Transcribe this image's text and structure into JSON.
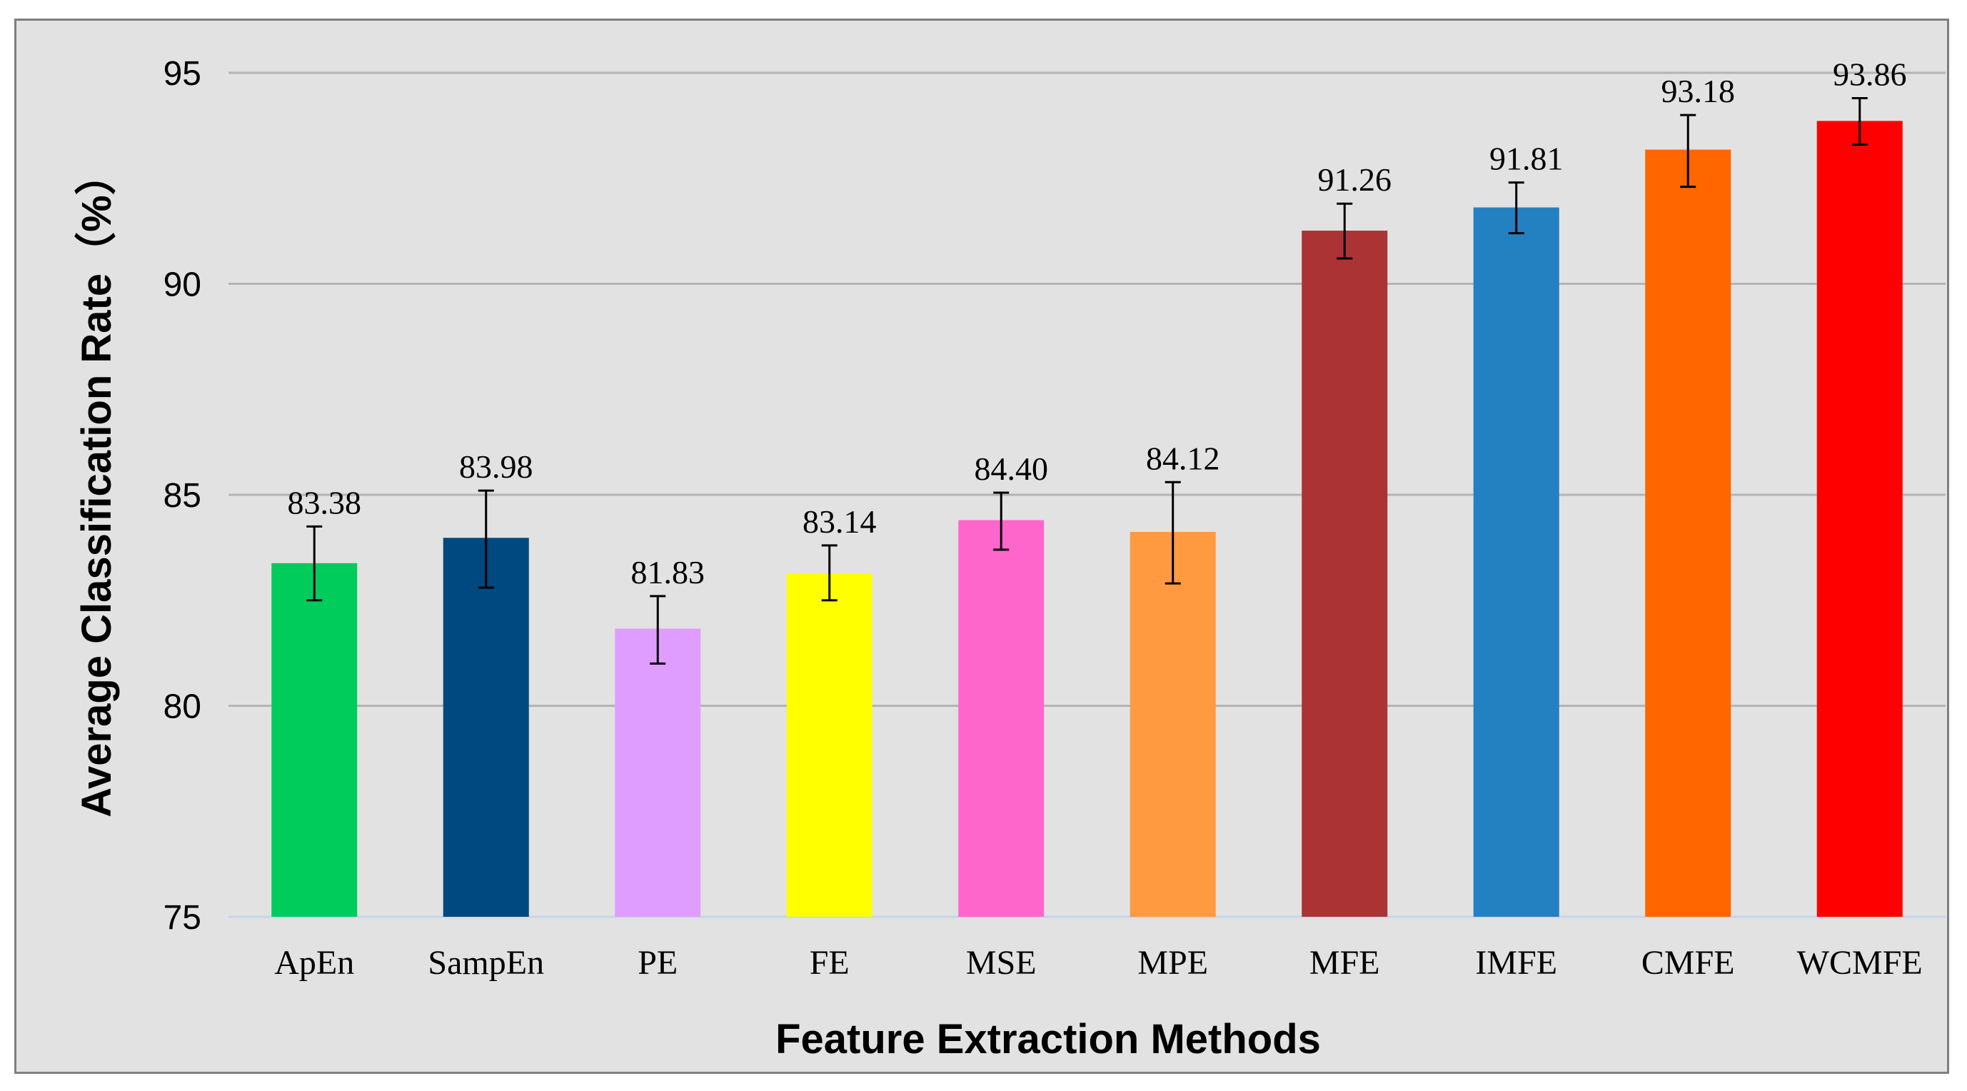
{
  "chart_data": {
    "type": "bar",
    "title": "",
    "xlabel": "Feature Extraction Methods",
    "ylabel": "Average Classification Rate（%）",
    "ylim": [
      75,
      95
    ],
    "yticks": [
      75,
      80,
      85,
      90,
      95
    ],
    "grid": true,
    "categories": [
      "ApEn",
      "SampEn",
      "PE",
      "FE",
      "MSE",
      "MPE",
      "MFE",
      "IMFE",
      "CMFE",
      "WCMFE"
    ],
    "values": [
      83.38,
      83.98,
      81.83,
      83.14,
      84.4,
      84.12,
      91.26,
      91.81,
      93.18,
      93.86
    ],
    "value_labels": [
      "83.38",
      "83.98",
      "81.83",
      "83.14",
      "84.40",
      "84.12",
      "91.26",
      "91.81",
      "93.18",
      "93.86"
    ],
    "error_low": [
      82.5,
      82.8,
      81.0,
      82.5,
      83.7,
      82.9,
      90.6,
      91.2,
      92.3,
      93.3
    ],
    "error_high": [
      84.25,
      85.1,
      82.6,
      83.8,
      85.05,
      85.3,
      91.9,
      92.4,
      94.0,
      94.4
    ],
    "colors": [
      "#00cc5c",
      "#004880",
      "#df9eff",
      "#ffff00",
      "#ff66cc",
      "#ff9a40",
      "#ac3333",
      "#2481c1",
      "#ff6600",
      "#ff0000"
    ]
  }
}
